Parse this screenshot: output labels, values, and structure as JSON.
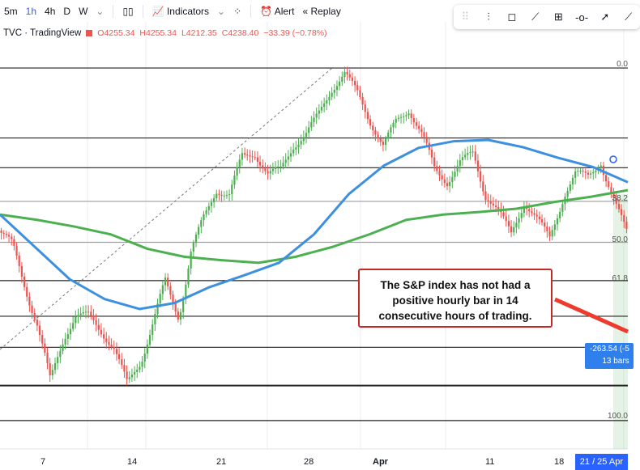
{
  "toolbar": {
    "intervals": [
      "5m",
      "1h",
      "4h",
      "D",
      "W"
    ],
    "active_interval": "1h",
    "indicators_label": "Indicators",
    "alert_label": "Alert",
    "replay_label": "Replay"
  },
  "legend": {
    "symbol": "TVC · TradingView",
    "open": "O4255.34",
    "high": "H4255.34",
    "low": "L4212.35",
    "close": "C4238.40",
    "change": "−33.39 (−0.78%)"
  },
  "drawing_tools": [
    "drag-handle",
    "cross-line",
    "callout",
    "trend-line",
    "fib-extension",
    "horizontal-ray",
    "arrow",
    "path"
  ],
  "annotation": {
    "line1": "The S&P index has not had a",
    "line2": "positive hourly bar in 14",
    "line3": "consecutive hours of trading."
  },
  "measure": {
    "change": "-263.54 (-5",
    "bars": "13 bars"
  },
  "fib_labels": [
    "0.0",
    "38.2",
    "50.0",
    "61.8",
    "100.0"
  ],
  "xaxis": {
    "ticks": [
      "7",
      "14",
      "21",
      "28",
      "Apr",
      "11",
      "18"
    ],
    "current": "21 / 25 Apr"
  },
  "colors": {
    "up": "#4caf50",
    "down": "#ef5350",
    "ma_fast": "#3d8fe0",
    "ma_slow": "#4caf50",
    "annotation_border": "#c62828",
    "measure_bg": "#2f80ed"
  },
  "chart_data": {
    "type": "candlestick",
    "ylim": [
      4065,
      4745
    ],
    "closes": [
      4396,
      4377,
      4316,
      4255,
      4163,
      4230,
      4267,
      4267,
      4243,
      4218,
      4163,
      4194,
      4255,
      4316,
      4267,
      4365,
      4414,
      4457,
      4451,
      4506,
      4512,
      4482,
      4488,
      4524,
      4543,
      4573,
      4610,
      4635,
      4604,
      4561,
      4524,
      4561,
      4579,
      4543,
      4488,
      4469,
      4500,
      4512,
      4451,
      4426,
      4390,
      4439,
      4414,
      4384,
      4445,
      4482,
      4478,
      4500,
      4439,
      4396
    ],
    "ma_fast": [
      4420,
      4371,
      4322,
      4292,
      4277,
      4286,
      4310,
      4328,
      4347,
      4390,
      4451,
      4494,
      4521,
      4531,
      4533,
      4522,
      4506,
      4492,
      4469
    ],
    "ma_slow": [
      4420,
      4412,
      4402,
      4390,
      4368,
      4356,
      4351,
      4347,
      4356,
      4371,
      4390,
      4412,
      4420,
      4424,
      4429,
      4439,
      4447,
      4457
    ],
    "horizontal_levels": [
      4642,
      4536,
      4491,
      4440,
      4378,
      4320,
      4266,
      4219,
      4161,
      4108
    ],
    "fib_levels": {
      "0.0": 4642,
      "38.2": 4440,
      "50.0": 4378,
      "61.8": 4320,
      "100.0": 4108
    }
  }
}
